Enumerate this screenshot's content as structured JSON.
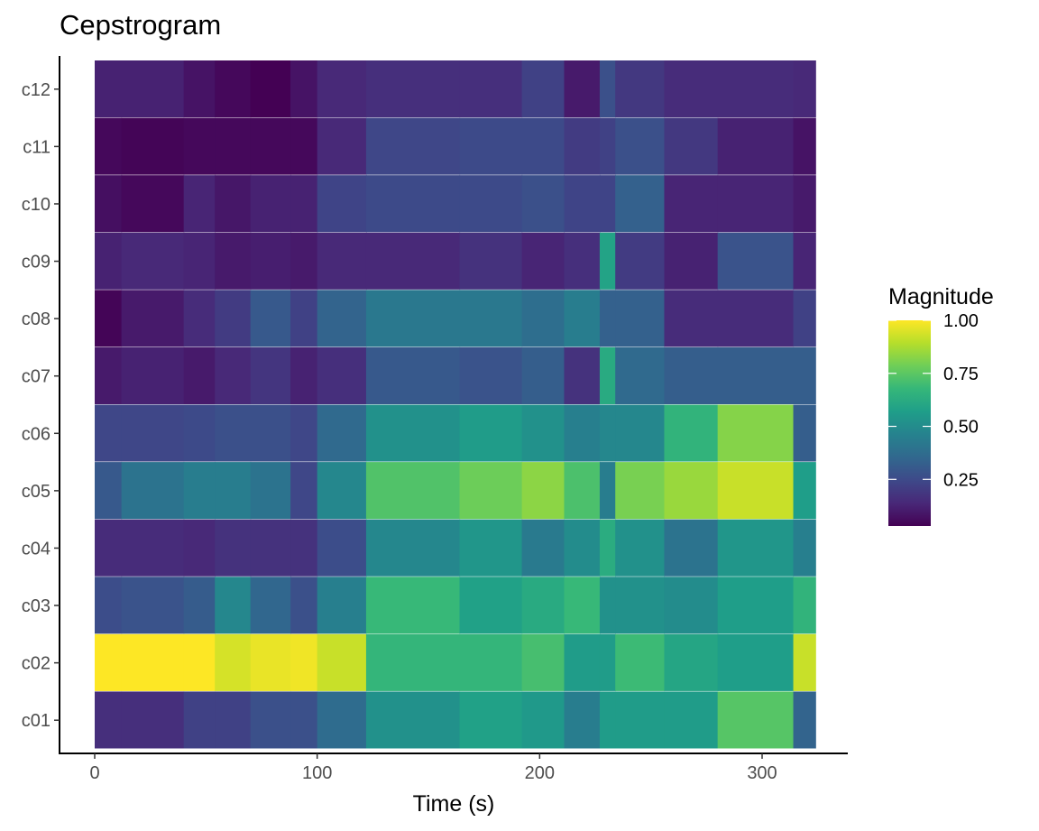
{
  "chart_data": {
    "type": "heatmap",
    "title": "Cepstrogram",
    "xlabel": "Time (s)",
    "ylabel": "",
    "xlim": [
      -10,
      340
    ],
    "x_ticks": [
      0,
      100,
      200,
      300
    ],
    "x_tick_labels": [
      "0",
      "100",
      "200",
      "300"
    ],
    "time_edges": [
      0,
      12,
      40,
      54,
      70,
      88,
      100,
      122,
      164,
      192,
      211,
      227,
      234,
      256,
      280,
      314,
      324
    ],
    "rows": [
      "c12",
      "c11",
      "c10",
      "c09",
      "c08",
      "c07",
      "c06",
      "c05",
      "c04",
      "c03",
      "c02",
      "c01"
    ],
    "values": [
      [
        0.12,
        0.12,
        0.08,
        0.05,
        0.03,
        0.08,
        0.14,
        0.16,
        0.16,
        0.22,
        0.1,
        0.27,
        0.19,
        0.15,
        0.15,
        0.14
      ],
      [
        0.05,
        0.04,
        0.05,
        0.05,
        0.05,
        0.05,
        0.14,
        0.24,
        0.25,
        0.25,
        0.2,
        0.22,
        0.27,
        0.19,
        0.12,
        0.08
      ],
      [
        0.07,
        0.05,
        0.13,
        0.09,
        0.12,
        0.12,
        0.23,
        0.25,
        0.25,
        0.27,
        0.23,
        0.23,
        0.33,
        0.13,
        0.13,
        0.1
      ],
      [
        0.12,
        0.14,
        0.13,
        0.1,
        0.11,
        0.1,
        0.14,
        0.14,
        0.17,
        0.13,
        0.16,
        0.59,
        0.2,
        0.12,
        0.28,
        0.13
      ],
      [
        0.04,
        0.1,
        0.15,
        0.2,
        0.3,
        0.22,
        0.34,
        0.42,
        0.42,
        0.38,
        0.44,
        0.33,
        0.33,
        0.15,
        0.15,
        0.22
      ],
      [
        0.1,
        0.12,
        0.1,
        0.14,
        0.18,
        0.12,
        0.16,
        0.3,
        0.28,
        0.32,
        0.17,
        0.62,
        0.36,
        0.32,
        0.32,
        0.32
      ],
      [
        0.24,
        0.24,
        0.25,
        0.27,
        0.27,
        0.24,
        0.36,
        0.52,
        0.56,
        0.52,
        0.45,
        0.48,
        0.48,
        0.66,
        0.82,
        0.32
      ],
      [
        0.3,
        0.4,
        0.44,
        0.44,
        0.4,
        0.24,
        0.48,
        0.73,
        0.78,
        0.83,
        0.72,
        0.44,
        0.8,
        0.85,
        0.92,
        0.57
      ],
      [
        0.15,
        0.15,
        0.14,
        0.17,
        0.17,
        0.17,
        0.26,
        0.48,
        0.54,
        0.43,
        0.5,
        0.63,
        0.52,
        0.4,
        0.54,
        0.45
      ],
      [
        0.26,
        0.28,
        0.31,
        0.48,
        0.35,
        0.27,
        0.45,
        0.68,
        0.58,
        0.62,
        0.68,
        0.52,
        0.52,
        0.5,
        0.57,
        0.66
      ],
      [
        1.0,
        1.0,
        1.0,
        0.94,
        0.97,
        0.98,
        0.92,
        0.67,
        0.67,
        0.71,
        0.56,
        0.56,
        0.69,
        0.6,
        0.57,
        0.92
      ],
      [
        0.16,
        0.16,
        0.22,
        0.22,
        0.27,
        0.27,
        0.37,
        0.52,
        0.58,
        0.55,
        0.44,
        0.56,
        0.56,
        0.56,
        0.74,
        0.34
      ]
    ],
    "legend": {
      "title": "Magnitude",
      "position": "right",
      "ticks": [
        1.0,
        0.75,
        0.5,
        0.25
      ],
      "tick_labels": [
        "1.00",
        "0.75",
        "0.50",
        "0.25"
      ],
      "range": [
        0.03,
        1.0
      ]
    },
    "grid": false,
    "palette": [
      "#440154",
      "#482878",
      "#3e4989",
      "#31688e",
      "#26828e",
      "#1f9e89",
      "#35b779",
      "#6ece58",
      "#b5de2b",
      "#fde725"
    ]
  }
}
